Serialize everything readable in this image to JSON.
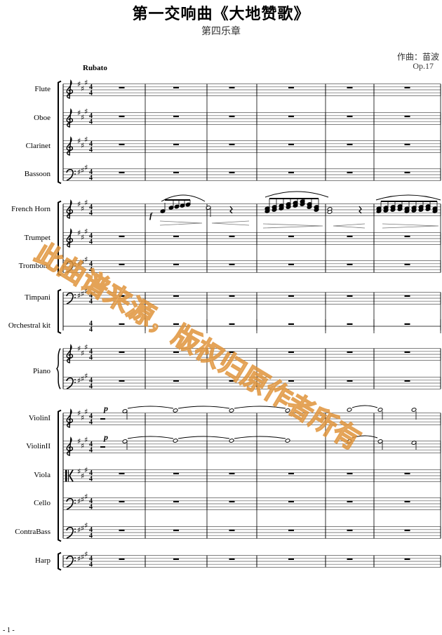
{
  "header": {
    "title": "第一交响曲《大地赞歌》",
    "subtitle": "第四乐章",
    "composer": "作曲：苗波",
    "opus": "Op.17",
    "tempo": "Rubato"
  },
  "key_signature": "A major (3 sharps)",
  "time_signature": {
    "numerator": "4",
    "denominator": "4"
  },
  "measures": 6,
  "instruments": [
    {
      "name": "Flute",
      "clef": "treble"
    },
    {
      "name": "Oboe",
      "clef": "treble"
    },
    {
      "name": "Clarinet",
      "clef": "treble"
    },
    {
      "name": "Bassoon",
      "clef": "bass"
    },
    {
      "name": "French Horn",
      "clef": "treble"
    },
    {
      "name": "Trumpet",
      "clef": "treble"
    },
    {
      "name": "Trombone",
      "clef": "bass"
    },
    {
      "name": "Timpani",
      "clef": "bass"
    },
    {
      "name": "Orchestral kit",
      "clef": "percussion"
    },
    {
      "name": "Piano",
      "clef": "grand"
    },
    {
      "name": "ViolinI",
      "clef": "treble"
    },
    {
      "name": "ViolinII",
      "clef": "treble"
    },
    {
      "name": "Viola",
      "clef": "alto"
    },
    {
      "name": "Cello",
      "clef": "bass"
    },
    {
      "name": "ContraBass",
      "clef": "bass"
    },
    {
      "name": "Harp",
      "clef": "bass"
    }
  ],
  "dynamics": {
    "horn": "f",
    "violin1": "p",
    "violin2": "p"
  },
  "watermark": "此曲谱来源，版权归原作者所有",
  "page_number": "- 1 -"
}
